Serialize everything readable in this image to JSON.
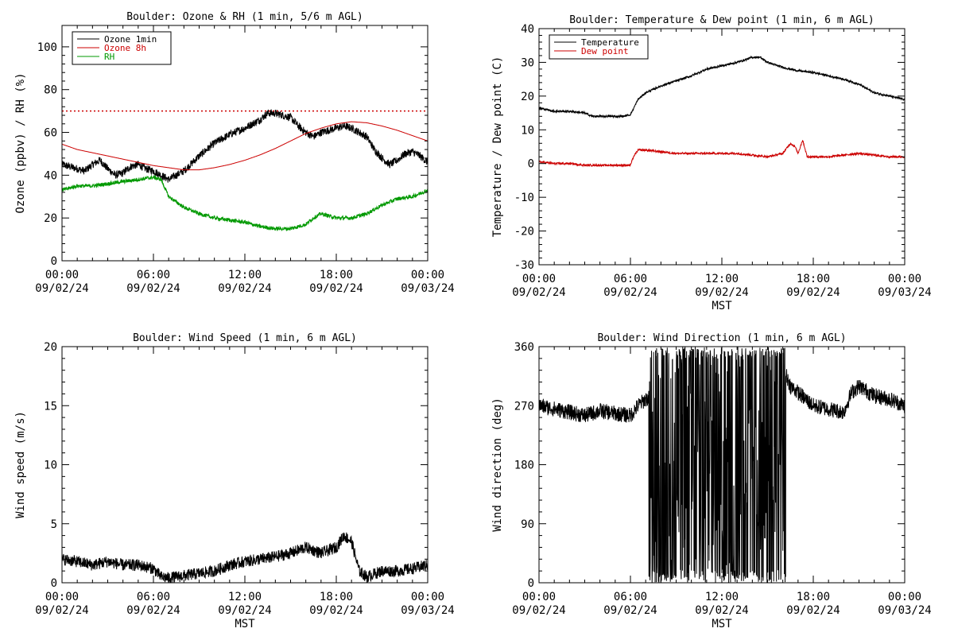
{
  "chart_data": [
    {
      "type": "line",
      "title": "Boulder: Ozone & RH (1 min, 5/6 m AGL)",
      "ylabel": "Ozone (ppbv) / RH (%)",
      "xlabel": "",
      "xlim": [
        0,
        24
      ],
      "ylim": [
        0,
        110
      ],
      "yticks": [
        0,
        20,
        40,
        60,
        80,
        100
      ],
      "xticks": [
        {
          "time": "00:00",
          "date": "09/02/24"
        },
        {
          "time": "06:00",
          "date": "09/02/24"
        },
        {
          "time": "12:00",
          "date": "09/02/24"
        },
        {
          "time": "18:00",
          "date": "09/02/24"
        },
        {
          "time": "00:00",
          "date": "09/03/24"
        }
      ],
      "legend_position": "top-left",
      "reference_line": {
        "y": 70,
        "color": "#cc0000",
        "style": "dotted"
      },
      "series": [
        {
          "name": "Ozone 1min",
          "color": "#000000",
          "noise": 1.8,
          "x": [
            0,
            0.5,
            1,
            1.5,
            2,
            2.5,
            3,
            3.5,
            4,
            4.5,
            5,
            5.5,
            6,
            6.5,
            7,
            7.5,
            8,
            9,
            10,
            11,
            12,
            12.5,
            13,
            13.5,
            14,
            14.5,
            15,
            15.5,
            16,
            16.5,
            17,
            17.5,
            18,
            18.5,
            19,
            19.5,
            20,
            20.5,
            21,
            21.5,
            22,
            22.5,
            23,
            23.5,
            24
          ],
          "y": [
            45,
            44,
            43,
            42,
            45,
            47,
            43,
            40,
            41,
            44,
            45,
            43,
            42,
            40,
            38,
            40,
            42,
            49,
            55,
            59,
            62,
            64,
            66,
            69,
            69,
            68,
            67,
            63,
            60,
            58,
            60,
            61,
            62,
            63,
            62,
            60,
            58,
            52,
            48,
            45,
            47,
            50,
            51,
            49,
            46
          ]
        },
        {
          "name": "Ozone 8h",
          "color": "#cc0000",
          "noise": 0,
          "x": [
            0,
            1,
            2,
            3,
            4,
            5,
            6,
            7,
            8,
            9,
            10,
            11,
            12,
            13,
            14,
            15,
            16,
            17,
            18,
            19,
            20,
            21,
            22,
            23,
            24
          ],
          "y": [
            54.5,
            52,
            50.5,
            49,
            47.5,
            46,
            44.5,
            43.5,
            42.5,
            42.5,
            43.5,
            45,
            47,
            49.5,
            52.5,
            56,
            59.5,
            62,
            64,
            65,
            64.5,
            63,
            61,
            58.5,
            56
          ]
        },
        {
          "name": "RH",
          "color": "#009900",
          "noise": 0.9,
          "x": [
            0,
            1,
            2,
            3,
            4,
            5,
            6,
            6.5,
            7,
            8,
            9,
            10,
            11,
            12,
            13,
            14,
            15,
            16,
            16.5,
            17,
            17.5,
            18,
            19,
            20,
            21,
            22,
            23,
            24
          ],
          "y": [
            33,
            35,
            35,
            36,
            37,
            38,
            39,
            38,
            30,
            25,
            22,
            20,
            19,
            18,
            16,
            15,
            15,
            17,
            20,
            22,
            21,
            20,
            20,
            22,
            26,
            29,
            30,
            33
          ]
        }
      ]
    },
    {
      "type": "line",
      "title": "Boulder: Temperature & Dew point (1 min, 6 m AGL)",
      "ylabel": "Temperature / Dew point (C)",
      "xlabel": "MST",
      "xlim": [
        0,
        24
      ],
      "ylim": [
        -30,
        40
      ],
      "yticks": [
        -30,
        -20,
        -10,
        0,
        10,
        20,
        30,
        40
      ],
      "xticks": [
        {
          "time": "00:00",
          "date": "09/02/24"
        },
        {
          "time": "06:00",
          "date": "09/02/24"
        },
        {
          "time": "12:00",
          "date": "09/02/24"
        },
        {
          "time": "18:00",
          "date": "09/02/24"
        },
        {
          "time": "00:00",
          "date": "09/03/24"
        }
      ],
      "legend_position": "top-left",
      "series": [
        {
          "name": "Temperature",
          "color": "#000000",
          "noise": 0.3,
          "x": [
            0,
            1,
            2,
            3,
            3.5,
            4,
            5,
            5.5,
            6,
            6.5,
            7,
            8,
            9,
            10,
            11,
            12,
            13,
            14,
            14.5,
            15,
            16,
            17,
            18,
            19,
            20,
            21,
            22,
            23,
            24
          ],
          "y": [
            16.5,
            15.5,
            15.5,
            15,
            14,
            14,
            14,
            14,
            14.5,
            19,
            21,
            23,
            24.5,
            26,
            28,
            29,
            30,
            31.5,
            31.5,
            30,
            28.5,
            27.5,
            27,
            26,
            25,
            23.5,
            21,
            20,
            19
          ]
        },
        {
          "name": "Dew point",
          "color": "#cc0000",
          "noise": 0.3,
          "x": [
            0,
            1,
            2,
            3,
            4,
            5,
            6,
            6.2,
            6.5,
            7,
            8,
            9,
            10,
            11,
            12,
            13,
            14,
            15,
            16,
            16.5,
            16.8,
            17,
            17.3,
            17.6,
            18,
            19,
            20,
            21,
            22,
            23,
            24
          ],
          "y": [
            0.5,
            0,
            0,
            -0.5,
            -0.5,
            -0.5,
            -0.5,
            2,
            4,
            4,
            3.5,
            3,
            3,
            3,
            3,
            3,
            2.5,
            2,
            3,
            6,
            5,
            3,
            7,
            2,
            2,
            2,
            2.5,
            3,
            2.5,
            2,
            2
          ]
        }
      ]
    },
    {
      "type": "line",
      "title": "Boulder: Wind Speed (1 min, 6 m AGL)",
      "ylabel": "Wind speed (m/s)",
      "xlabel": "MST",
      "xlim": [
        0,
        24
      ],
      "ylim": [
        0,
        20
      ],
      "yticks": [
        0,
        5,
        10,
        15,
        20
      ],
      "xticks": [
        {
          "time": "00:00",
          "date": "09/02/24"
        },
        {
          "time": "06:00",
          "date": "09/02/24"
        },
        {
          "time": "12:00",
          "date": "09/02/24"
        },
        {
          "time": "18:00",
          "date": "09/02/24"
        },
        {
          "time": "00:00",
          "date": "09/03/24"
        }
      ],
      "series": [
        {
          "name": "",
          "color": "#000000",
          "noise": 0.5,
          "x": [
            0,
            1,
            2,
            3,
            4,
            5,
            6,
            6.5,
            7,
            8,
            9,
            10,
            11,
            12,
            13,
            14,
            15,
            16,
            17,
            18,
            18.5,
            19,
            19.5,
            20,
            21,
            22,
            23,
            24
          ],
          "y": [
            2,
            1.8,
            1.5,
            1.8,
            1.5,
            1.5,
            1.2,
            0.5,
            0.4,
            0.6,
            0.8,
            1,
            1.5,
            1.8,
            2,
            2.2,
            2.5,
            3,
            2.5,
            3,
            4,
            3.5,
            1,
            0.5,
            1,
            1,
            1.2,
            1.5
          ]
        }
      ]
    },
    {
      "type": "line",
      "title": "Boulder: Wind Direction (1 min, 6 m AGL)",
      "ylabel": "Wind direction (deg)",
      "xlabel": "MST",
      "xlim": [
        0,
        24
      ],
      "ylim": [
        0,
        360
      ],
      "yticks": [
        0,
        90,
        180,
        270,
        360
      ],
      "xticks": [
        {
          "time": "00:00",
          "date": "09/02/24"
        },
        {
          "time": "06:00",
          "date": "09/02/24"
        },
        {
          "time": "12:00",
          "date": "09/02/24"
        },
        {
          "time": "18:00",
          "date": "09/02/24"
        },
        {
          "time": "00:00",
          "date": "09/03/24"
        }
      ],
      "series": [
        {
          "name": "",
          "color": "#000000",
          "noise": 12,
          "x": [
            0,
            1,
            2,
            3,
            4,
            5,
            6,
            6.5,
            7,
            16,
            16.5,
            17,
            18,
            19,
            20,
            20.5,
            21,
            22,
            23,
            24
          ],
          "y": [
            270,
            265,
            260,
            255,
            262,
            258,
            255,
            270,
            280,
            330,
            300,
            290,
            270,
            265,
            260,
            290,
            300,
            285,
            280,
            270
          ]
        }
      ],
      "wrap_interval": [
        7.2,
        16.2
      ]
    }
  ]
}
